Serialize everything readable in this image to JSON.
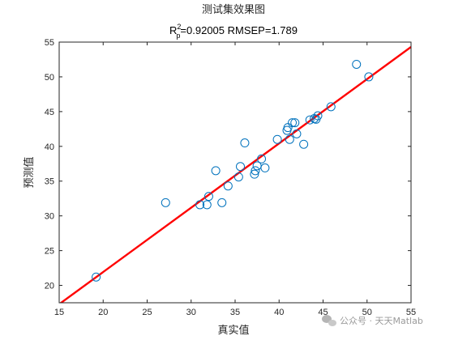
{
  "chart_data": {
    "type": "scatter",
    "title": "测试集效果图",
    "subtitle": {
      "r_symbol": "R",
      "r_superscript": "2",
      "r_subscript": "p",
      "text": "=0.92005  RMSEP=1.789"
    },
    "xlabel": "真实值",
    "ylabel": "预测值",
    "xlim": [
      15,
      55
    ],
    "ylim": [
      17.5,
      55
    ],
    "xticks": [
      15,
      20,
      25,
      30,
      35,
      40,
      45,
      50,
      55
    ],
    "yticks": [
      20,
      25,
      30,
      35,
      40,
      45,
      50,
      55
    ],
    "grid": false,
    "legend": "none",
    "points": [
      {
        "x": 19.2,
        "y": 21.2
      },
      {
        "x": 27.1,
        "y": 31.9
      },
      {
        "x": 31.0,
        "y": 31.6
      },
      {
        "x": 31.8,
        "y": 31.6
      },
      {
        "x": 32.0,
        "y": 32.8
      },
      {
        "x": 32.8,
        "y": 36.5
      },
      {
        "x": 33.5,
        "y": 31.9
      },
      {
        "x": 34.2,
        "y": 34.3
      },
      {
        "x": 35.4,
        "y": 35.6
      },
      {
        "x": 35.6,
        "y": 37.1
      },
      {
        "x": 36.1,
        "y": 40.5
      },
      {
        "x": 37.2,
        "y": 36.0
      },
      {
        "x": 37.3,
        "y": 36.5
      },
      {
        "x": 37.5,
        "y": 37.2
      },
      {
        "x": 38.0,
        "y": 38.2
      },
      {
        "x": 38.4,
        "y": 36.9
      },
      {
        "x": 39.8,
        "y": 41.0
      },
      {
        "x": 40.9,
        "y": 42.3
      },
      {
        "x": 41.0,
        "y": 42.7
      },
      {
        "x": 41.2,
        "y": 41.0
      },
      {
        "x": 41.5,
        "y": 43.4
      },
      {
        "x": 41.8,
        "y": 43.4
      },
      {
        "x": 42.0,
        "y": 41.8
      },
      {
        "x": 42.8,
        "y": 40.3
      },
      {
        "x": 43.5,
        "y": 43.8
      },
      {
        "x": 44.0,
        "y": 44.0
      },
      {
        "x": 44.2,
        "y": 43.9
      },
      {
        "x": 44.4,
        "y": 44.4
      },
      {
        "x": 45.9,
        "y": 45.7
      },
      {
        "x": 48.8,
        "y": 51.8
      },
      {
        "x": 50.2,
        "y": 50.0
      }
    ],
    "fit_line": {
      "x": [
        15,
        55
      ],
      "y": [
        17.3,
        54.3
      ]
    },
    "colors": {
      "points": "#0072BD",
      "fit_line": "#FF0000",
      "axes": "#262626"
    }
  },
  "watermark": {
    "icon": "wechat-icon",
    "text": "公众号 · 天天Matlab"
  }
}
